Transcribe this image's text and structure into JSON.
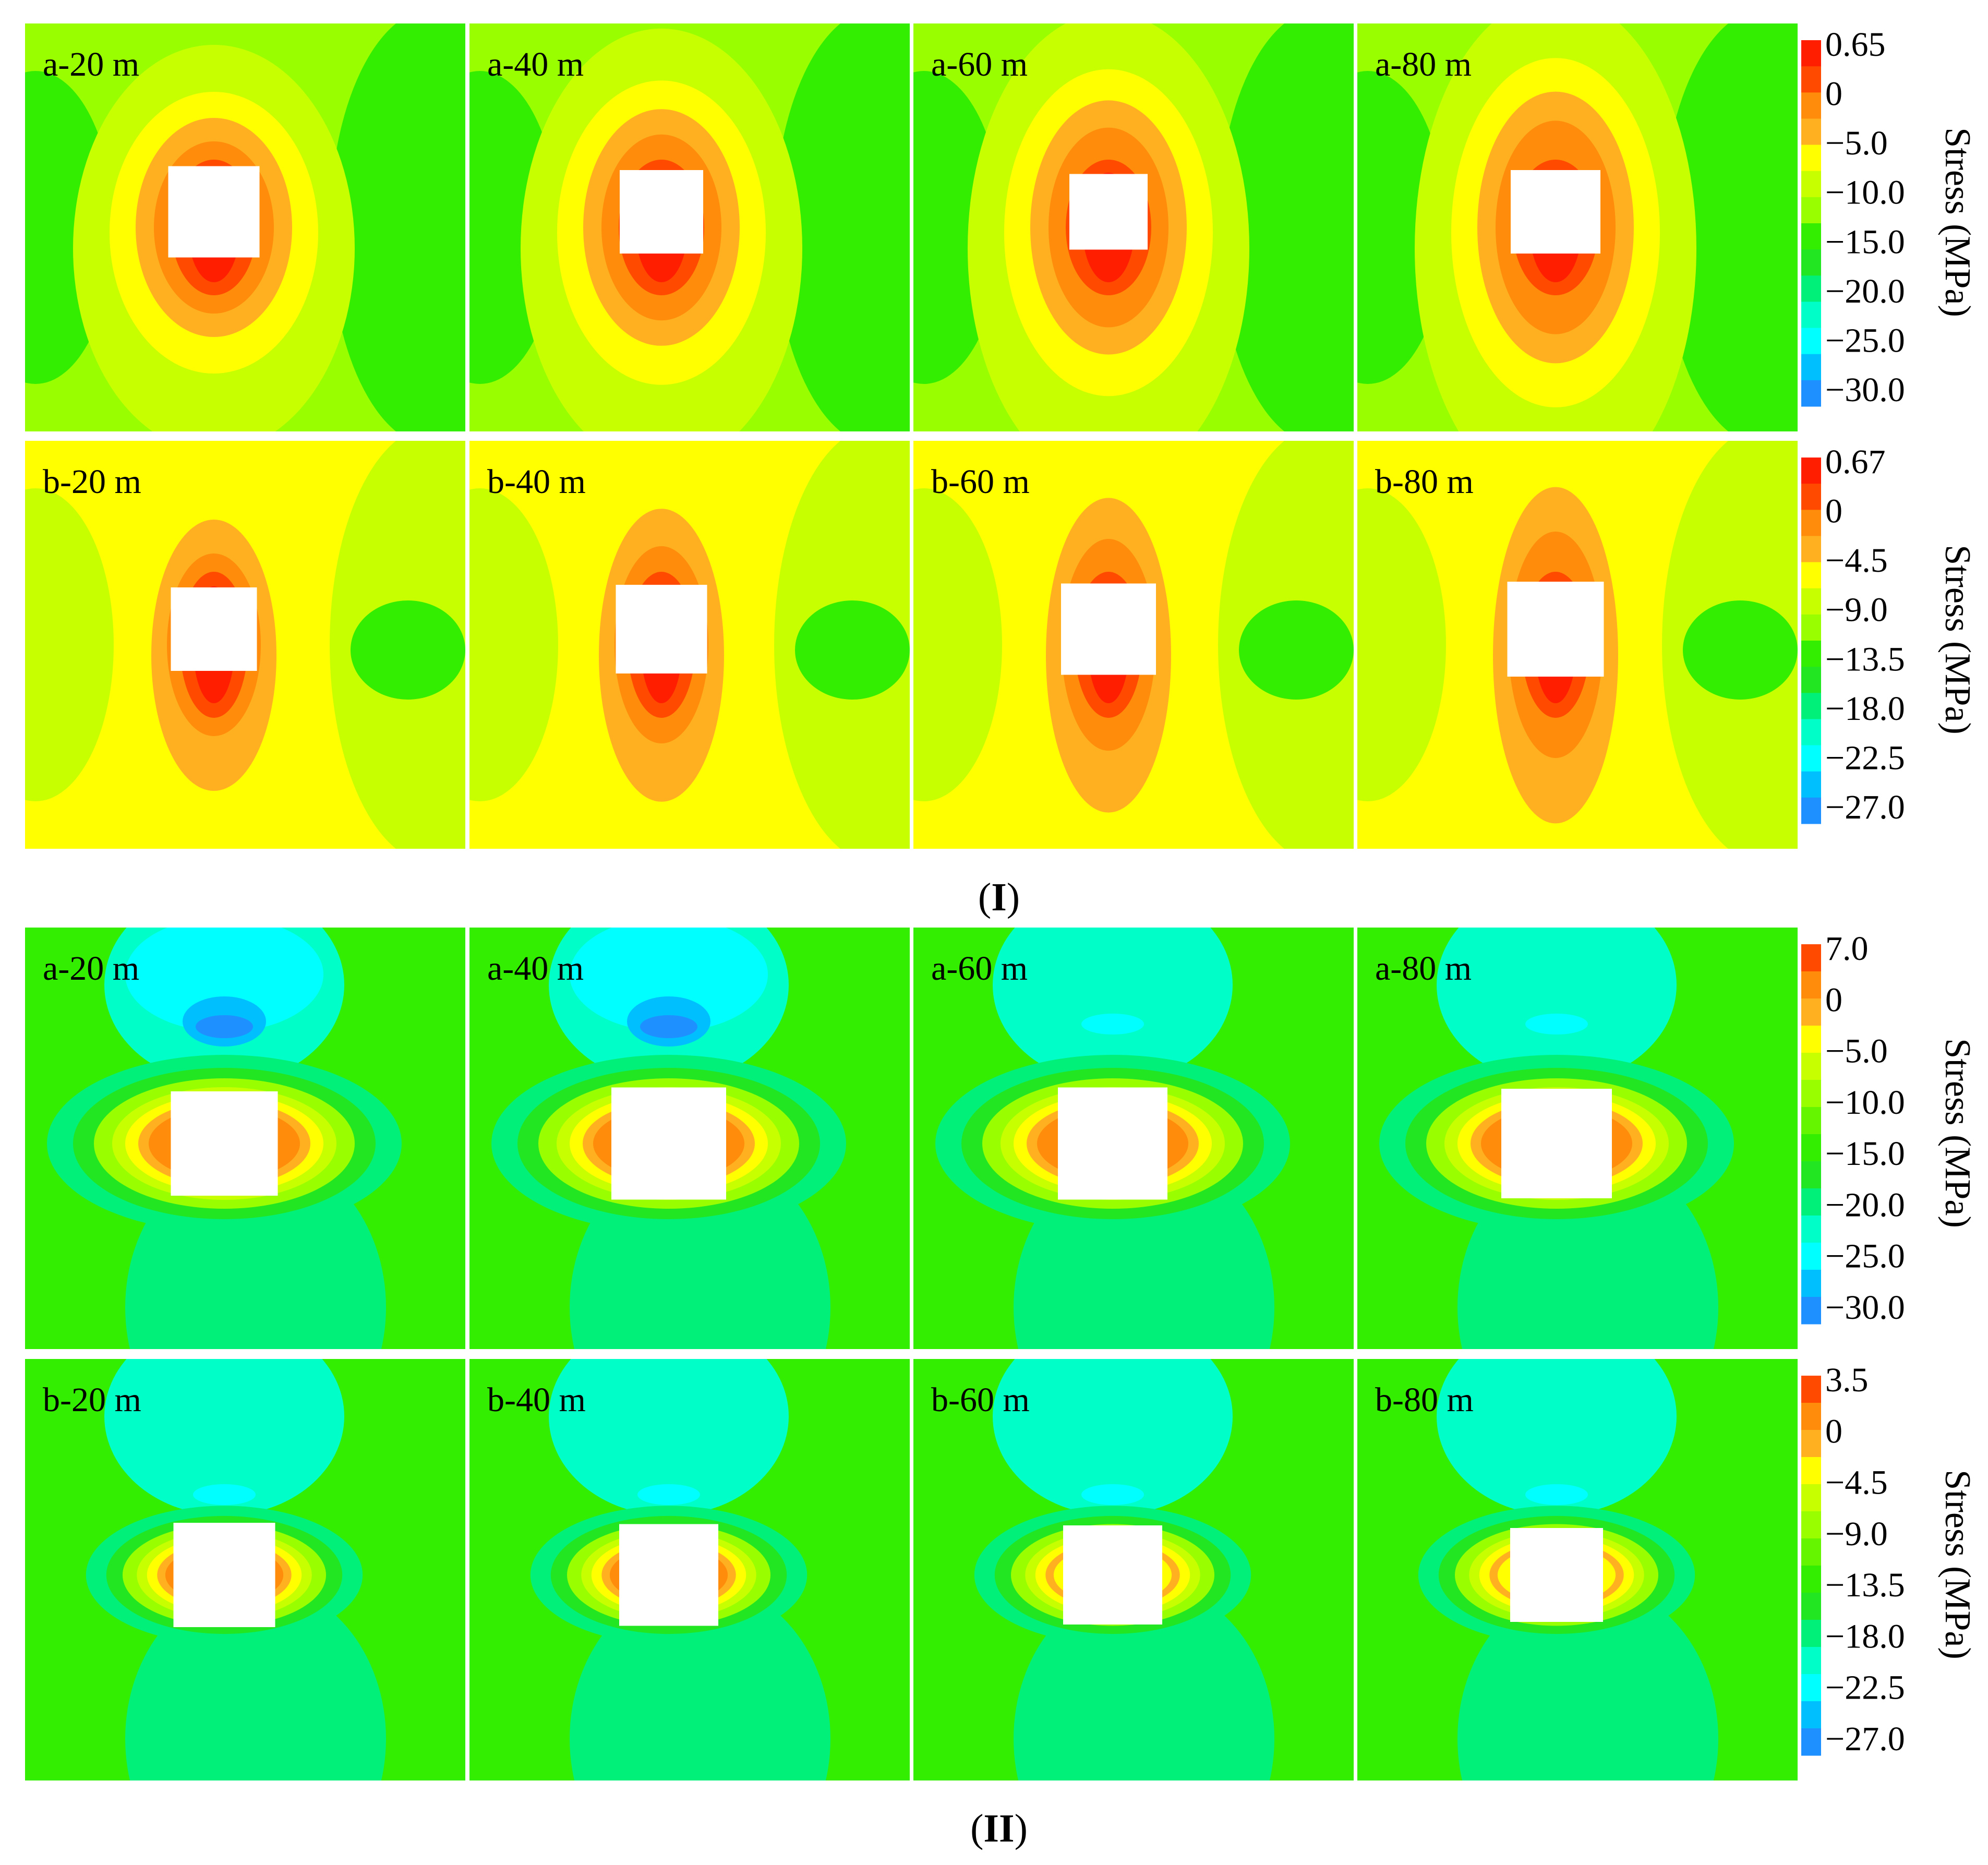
{
  "figure": {
    "part_labels": [
      {
        "open": "(",
        "roman": "I",
        "close": ")"
      },
      {
        "open": "(",
        "roman": "II",
        "close": ")"
      }
    ],
    "colorbar_title": "Stress (MPa)",
    "colors": {
      "red": "#ff1f00",
      "red_orange": "#ff4a00",
      "orange": "#ff8c0a",
      "light_orange": "#ffb020",
      "yellow": "#ffff00",
      "yellow_green": "#c8ff00",
      "light_green": "#99ff00",
      "green": "#33ee00",
      "green2": "#22e622",
      "mint": "#00f07a",
      "aqua": "#00ffc8",
      "cyan": "#00ffff",
      "light_blue": "#00bfff",
      "blue": "#1e90ff"
    },
    "rows": [
      {
        "id": "I-a",
        "style": "vertical",
        "background": "#99ff00",
        "panels": [
          "a-20 m",
          "a-40 m",
          "a-60 m",
          "a-80 m"
        ],
        "colorbar": {
          "ticks": [
            "0.65",
            "0",
            "−5.0",
            "−10.0",
            "−15.0",
            "−20.0",
            "−25.0",
            "−30.0"
          ],
          "colors": [
            "#ff1f00",
            "#ff4a00",
            "#ff8c0a",
            "#ffb020",
            "#ffff00",
            "#c8ff00",
            "#99ff00",
            "#33ee00",
            "#22e622",
            "#00f07a",
            "#00ffc8",
            "#00ffff",
            "#00bfff",
            "#1e90ff"
          ]
        }
      },
      {
        "id": "I-b",
        "style": "vertical",
        "background": "#ffff00",
        "panels": [
          "b-20 m",
          "b-40 m",
          "b-60 m",
          "b-80 m"
        ],
        "colorbar": {
          "ticks": [
            "0.67",
            "0",
            "−4.5",
            "−9.0",
            "−13.5",
            "−18.0",
            "−22.5",
            "−27.0"
          ],
          "colors": [
            "#ff1f00",
            "#ff4a00",
            "#ff8c0a",
            "#ffb020",
            "#ffff00",
            "#c8ff00",
            "#99ff00",
            "#33ee00",
            "#22e622",
            "#00f07a",
            "#00ffc8",
            "#00ffff",
            "#00bfff",
            "#1e90ff"
          ]
        }
      },
      {
        "id": "II-a",
        "style": "horizontal",
        "background": "#33ee00",
        "panels": [
          "a-20 m",
          "a-40 m",
          "a-60 m",
          "a-80 m"
        ],
        "colorbar": {
          "ticks": [
            "7.0",
            "0",
            "−5.0",
            "−10.0",
            "−15.0",
            "−20.0",
            "−25.0",
            "−30.0"
          ],
          "colors": [
            "#ff4a00",
            "#ff8c0a",
            "#ffb020",
            "#ffff00",
            "#c8ff00",
            "#99ff00",
            "#66f500",
            "#33ee00",
            "#22e622",
            "#00f07a",
            "#00ffc8",
            "#00ffff",
            "#00bfff",
            "#1e90ff"
          ]
        }
      },
      {
        "id": "II-b",
        "style": "horizontal",
        "background": "#33ee00",
        "panels": [
          "b-20 m",
          "b-40 m",
          "b-60 m",
          "b-80 m"
        ],
        "colorbar": {
          "ticks": [
            "3.5",
            "0",
            "−4.5",
            "−9.0",
            "−13.5",
            "−18.0",
            "−22.5",
            "−27.0"
          ],
          "colors": [
            "#ff4a00",
            "#ff8c0a",
            "#ffb020",
            "#ffff00",
            "#c8ff00",
            "#99ff00",
            "#66f500",
            "#33ee00",
            "#22e622",
            "#00f07a",
            "#00ffc8",
            "#00ffff",
            "#00bfff",
            "#1e90ff"
          ]
        }
      }
    ]
  }
}
